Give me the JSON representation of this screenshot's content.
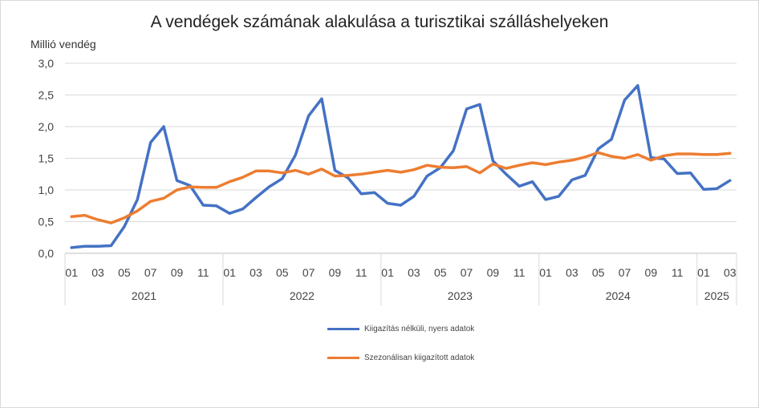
{
  "chart_data": {
    "type": "line",
    "title": "A vendégek számának alakulása a turisztikai szálláshelyeken",
    "ylabel": "Millió vendég",
    "xlabel": "",
    "ylim": [
      0,
      3
    ],
    "yticks": [
      "0,0",
      "0,5",
      "1,0",
      "1,5",
      "2,0",
      "2,5",
      "3,0"
    ],
    "grid": true,
    "legend_position": "bottom",
    "month_tick_labels": [
      "01",
      "03",
      "05",
      "07",
      "09",
      "11",
      "01",
      "03",
      "05",
      "07",
      "09",
      "11",
      "01",
      "03",
      "05",
      "07",
      "09",
      "11",
      "01",
      "03",
      "05",
      "07",
      "09",
      "11",
      "01",
      "03"
    ],
    "year_labels": [
      "2021",
      "2022",
      "2023",
      "2024",
      "2025"
    ],
    "x": [
      "2021-01",
      "2021-02",
      "2021-03",
      "2021-04",
      "2021-05",
      "2021-06",
      "2021-07",
      "2021-08",
      "2021-09",
      "2021-10",
      "2021-11",
      "2021-12",
      "2022-01",
      "2022-02",
      "2022-03",
      "2022-04",
      "2022-05",
      "2022-06",
      "2022-07",
      "2022-08",
      "2022-09",
      "2022-10",
      "2022-11",
      "2022-12",
      "2023-01",
      "2023-02",
      "2023-03",
      "2023-04",
      "2023-05",
      "2023-06",
      "2023-07",
      "2023-08",
      "2023-09",
      "2023-10",
      "2023-11",
      "2023-12",
      "2024-01",
      "2024-02",
      "2024-03",
      "2024-04",
      "2024-05",
      "2024-06",
      "2024-07",
      "2024-08",
      "2024-09",
      "2024-10",
      "2024-11",
      "2024-12",
      "2025-01",
      "2025-02",
      "2025-03"
    ],
    "series": [
      {
        "name": "Kiigazítás nélküli, nyers adatok",
        "color": "#4472c4",
        "values": [
          0.09,
          0.11,
          0.11,
          0.12,
          0.42,
          0.85,
          1.75,
          2.0,
          1.15,
          1.07,
          0.76,
          0.75,
          0.63,
          0.7,
          0.88,
          1.05,
          1.18,
          1.55,
          2.17,
          2.44,
          1.31,
          1.19,
          0.94,
          0.96,
          0.79,
          0.76,
          0.9,
          1.22,
          1.35,
          1.62,
          2.28,
          2.35,
          1.46,
          1.25,
          1.06,
          1.13,
          0.85,
          0.9,
          1.16,
          1.23,
          1.65,
          1.8,
          2.42,
          2.65,
          1.51,
          1.49,
          1.26,
          1.27,
          1.01,
          1.02,
          1.15
        ]
      },
      {
        "name": "Szezonálisan kiigazított adatok",
        "color": "#ed7d31",
        "values": [
          0.58,
          0.6,
          0.53,
          0.48,
          0.56,
          0.67,
          0.82,
          0.87,
          1.0,
          1.05,
          1.04,
          1.04,
          1.13,
          1.2,
          1.3,
          1.3,
          1.27,
          1.31,
          1.25,
          1.33,
          1.22,
          1.23,
          1.25,
          1.28,
          1.31,
          1.28,
          1.32,
          1.39,
          1.36,
          1.35,
          1.37,
          1.27,
          1.41,
          1.34,
          1.39,
          1.43,
          1.4,
          1.44,
          1.47,
          1.52,
          1.59,
          1.53,
          1.5,
          1.56,
          1.47,
          1.54,
          1.57,
          1.57,
          1.56,
          1.56,
          1.58
        ]
      }
    ]
  }
}
